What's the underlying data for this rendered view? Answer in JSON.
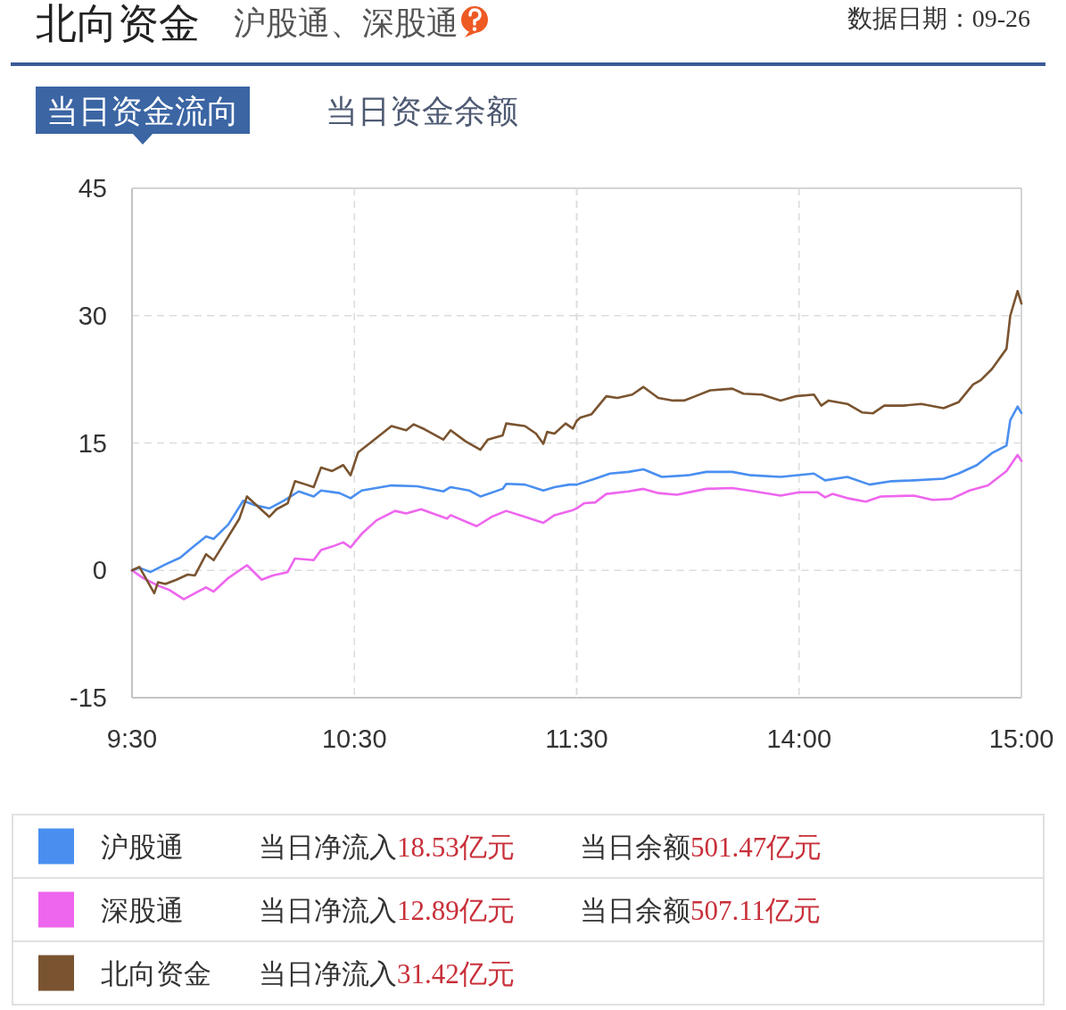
{
  "chart_data": [
    {
      "type": "line",
      "title": "北向资金",
      "subtitle": "沪股通、深股通",
      "annotations": [
        "数据日期：09-26",
        "当日资金流向",
        "当日资金余额",
        "当日净流入18.53亿元",
        "当日余额501.47亿元",
        "当日净流入12.89亿元",
        "当日余额507.11亿元",
        "当日净流入31.42亿元"
      ],
      "xlim": [
        9.5,
        11.5
      ],
      "xticks": [
        {
          "value": 9.5,
          "label": "9:30"
        },
        {
          "value": 10.5,
          "label": "10:30"
        },
        {
          "value": 11.5,
          "label": "11:30"
        }
      ],
      "ylim": [
        -15,
        45
      ],
      "yticks": [
        -15,
        0,
        15,
        30,
        45
      ],
      "grid": true,
      "legend": "bottom",
      "series": [
        {
          "name": "沪股通",
          "color": "#4a8ff0",
          "x": [
            9.5,
            9.533,
            9.583,
            9.65,
            9.717,
            9.767,
            9.833,
            9.867,
            9.933,
            10.0,
            10.05,
            10.117,
            10.183,
            10.25,
            10.317,
            10.35,
            10.433,
            10.483,
            10.533,
            10.667,
            10.783,
            10.9,
            10.933,
            11.017,
            11.067,
            11.167,
            11.183,
            11.267,
            11.35,
            11.4,
            11.467,
            11.5
          ],
          "values": [
            0,
            0.3,
            -0.2,
            0.7,
            1.5,
            2.6,
            4.0,
            3.7,
            5.4,
            8.2,
            7.7,
            7.3,
            8.2,
            9.3,
            8.7,
            9.4,
            9.1,
            8.5,
            9.4,
            10.0,
            9.9,
            9.3,
            9.8,
            9.4,
            8.7,
            9.6,
            10.2,
            10.1,
            9.4,
            9.8,
            10.1,
            10.1
          ]
        },
        {
          "name": "深股通",
          "color": "#ee66ee",
          "x": [
            9.5,
            9.55,
            9.617,
            9.667,
            9.733,
            9.783,
            9.833,
            9.867,
            9.933,
            10.017,
            10.083,
            10.133,
            10.2,
            10.233,
            10.317,
            10.35,
            10.4,
            10.45,
            10.483,
            10.533,
            10.6,
            10.683,
            10.733,
            10.8,
            10.917,
            10.933,
            11.05,
            11.117,
            11.183,
            11.267,
            11.35,
            11.4,
            11.483,
            11.5
          ],
          "values": [
            0,
            -0.9,
            -1.8,
            -2.3,
            -3.4,
            -2.7,
            -2.0,
            -2.5,
            -0.9,
            0.6,
            -1.1,
            -0.6,
            -0.2,
            1.4,
            1.2,
            2.4,
            2.8,
            3.3,
            2.7,
            4.3,
            5.9,
            7.0,
            6.7,
            7.2,
            6.1,
            6.5,
            5.2,
            6.3,
            7.0,
            6.3,
            5.6,
            6.5,
            7.1,
            7.3
          ]
        },
        {
          "name": "北向资金",
          "color": "#7a5430",
          "x": [
            9.5,
            9.533,
            9.6,
            9.617,
            9.65,
            9.7,
            9.75,
            9.783,
            9.833,
            9.867,
            9.917,
            9.983,
            10.017,
            10.05,
            10.117,
            10.15,
            10.2,
            10.233,
            10.283,
            10.317,
            10.35,
            10.4,
            10.45,
            10.483,
            10.517,
            10.6,
            10.667,
            10.733,
            10.767,
            10.817,
            10.9,
            10.933,
            11.0,
            11.067,
            11.1,
            11.167,
            11.183,
            11.267,
            11.317,
            11.35,
            11.367,
            11.4,
            11.45,
            11.483,
            11.5
          ],
          "values": [
            0,
            0.4,
            -2.7,
            -1.4,
            -1.6,
            -1.1,
            -0.5,
            -0.6,
            1.9,
            1.2,
            3.3,
            6.1,
            8.7,
            7.9,
            6.3,
            7.2,
            7.9,
            10.5,
            10.1,
            9.8,
            12.1,
            11.7,
            12.4,
            11.2,
            13.9,
            15.6,
            17.0,
            16.5,
            17.2,
            16.6,
            15.4,
            16.5,
            15.2,
            14.2,
            15.4,
            15.9,
            17.3,
            17.0,
            16.1,
            14.9,
            16.3,
            16.1,
            17.3,
            16.7,
            17.6
          ]
        }
      ]
    },
    {
      "type": "line",
      "xlim": [
        13,
        15
      ],
      "xticks": [
        {
          "value": 13,
          "label": null
        },
        {
          "value": 14,
          "label": "14:00"
        },
        {
          "value": 15,
          "label": "15:00"
        }
      ],
      "ylim": [
        -15,
        45
      ],
      "yticks": [
        -15,
        0,
        15,
        30,
        45
      ],
      "grid": true,
      "tick_labels": "x",
      "series": [
        {
          "color": "#4a8ff0",
          "x": [
            13.0,
            13.083,
            13.15,
            13.233,
            13.3,
            13.383,
            13.5,
            13.583,
            13.7,
            13.783,
            13.917,
            14.067,
            14.117,
            14.217,
            14.317,
            14.417,
            14.517,
            14.65,
            14.717,
            14.8,
            14.867,
            14.933,
            14.95,
            14.983,
            15.0
          ],
          "values": [
            10.1,
            10.8,
            11.4,
            11.6,
            11.9,
            11.0,
            11.2,
            11.6,
            11.6,
            11.2,
            11.0,
            11.4,
            10.6,
            11.0,
            10.1,
            10.5,
            10.6,
            10.8,
            11.4,
            12.4,
            13.8,
            14.7,
            17.7,
            19.3,
            18.53
          ]
        },
        {
          "color": "#ee66ee",
          "x": [
            13.0,
            13.033,
            13.083,
            13.133,
            13.233,
            13.3,
            13.367,
            13.45,
            13.583,
            13.7,
            13.8,
            13.917,
            14.0,
            14.083,
            14.117,
            14.15,
            14.217,
            14.3,
            14.367,
            14.517,
            14.6,
            14.683,
            14.767,
            14.85,
            14.933,
            14.983,
            15.0
          ],
          "values": [
            7.3,
            7.9,
            8.0,
            9.0,
            9.3,
            9.6,
            9.1,
            8.9,
            9.6,
            9.7,
            9.3,
            8.8,
            9.2,
            9.2,
            8.6,
            9.0,
            8.5,
            8.1,
            8.7,
            8.8,
            8.3,
            8.4,
            9.4,
            10.0,
            11.7,
            13.6,
            12.89
          ]
        },
        {
          "color": "#7a5430",
          "x": [
            13.0,
            13.017,
            13.067,
            13.133,
            13.183,
            13.25,
            13.3,
            13.367,
            13.433,
            13.483,
            13.533,
            13.6,
            13.7,
            13.75,
            13.833,
            13.917,
            13.983,
            14.067,
            14.1,
            14.133,
            14.217,
            14.283,
            14.333,
            14.383,
            14.467,
            14.55,
            14.65,
            14.717,
            14.783,
            14.817,
            14.867,
            14.933,
            14.95,
            14.983,
            15.0
          ],
          "values": [
            17.6,
            18.0,
            18.4,
            20.5,
            20.3,
            20.7,
            21.6,
            20.3,
            20.0,
            20.0,
            20.5,
            21.2,
            21.4,
            20.8,
            20.7,
            20.0,
            20.5,
            20.7,
            19.4,
            20.0,
            19.6,
            18.6,
            18.5,
            19.4,
            19.4,
            19.6,
            19.1,
            19.8,
            21.9,
            22.4,
            23.7,
            26.1,
            30.0,
            32.9,
            31.42
          ]
        }
      ]
    }
  ]
}
